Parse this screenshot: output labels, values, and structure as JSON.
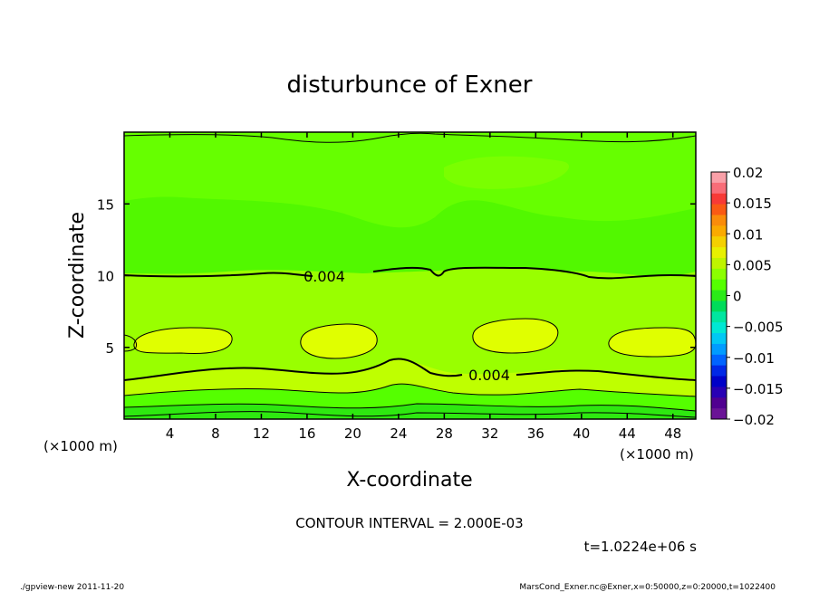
{
  "chart_data": {
    "type": "heatmap",
    "title": "disturbunce of Exner",
    "xlabel": "X-coordinate",
    "ylabel": "Z-coordinate",
    "x_unit": "(×1000 m)",
    "y_unit": "(×1000 m)",
    "xlim": [
      0,
      50
    ],
    "ylim": [
      0,
      20
    ],
    "x_ticks": [
      4,
      8,
      12,
      16,
      20,
      24,
      28,
      32,
      36,
      40,
      44,
      48
    ],
    "y_ticks": [
      5,
      10,
      15
    ],
    "colorbar": {
      "levels": [
        -0.02,
        -0.015,
        -0.01,
        -0.005,
        0,
        0.005,
        0.01,
        0.015,
        0.02
      ],
      "labels": [
        "0.02",
        "0.015",
        "0.01",
        "0.005",
        "0",
        "−0.005",
        "−0.01",
        "−0.015",
        "−0.02"
      ],
      "colors": [
        "#f9a0a8",
        "#f86d78",
        "#f73a36",
        "#fa5a14",
        "#fa8c0a",
        "#faaa00",
        "#f4d000",
        "#e8f000",
        "#bff400",
        "#8cff00",
        "#55ff00",
        "#2bea18",
        "#00dc5a",
        "#00e6a0",
        "#00e8d4",
        "#00c8f4",
        "#009cff",
        "#0064ff",
        "#0028e6",
        "#0000c8",
        "#2800b4",
        "#500090",
        "#6a1496"
      ]
    },
    "contour_labels": [
      {
        "x": 18,
        "z": 10.0,
        "text": "0.004"
      },
      {
        "x": 33,
        "z": 3.0,
        "text": "0.004"
      }
    ],
    "contour_interval": "CONTOUR INTERVAL = 2.000E-03",
    "time_label": "t=1.0224e+06 s",
    "footer_left": "./gpview-new   2011-11-20",
    "footer_right": "MarsCond_Exner.nc@Exner,x=0:50000,z=0:20000,t=1022400"
  }
}
